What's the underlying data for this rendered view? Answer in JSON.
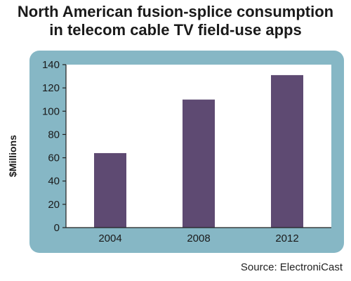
{
  "chart_data": {
    "type": "bar",
    "title_lines": [
      "North American fusion-splice consumption",
      "in telecom cable TV field-use apps"
    ],
    "ylabel": "$Millions",
    "categories": [
      "2004",
      "2008",
      "2012"
    ],
    "values": [
      64,
      110,
      131
    ],
    "yticks": [
      0,
      20,
      40,
      60,
      80,
      100,
      120,
      140
    ],
    "ylim": [
      0,
      140
    ],
    "grid": false,
    "colors": {
      "bar": "#5e4a72",
      "panel": "#86b7c5",
      "plot_bg": "#ffffff"
    }
  },
  "source": "Source: ElectroniCast"
}
